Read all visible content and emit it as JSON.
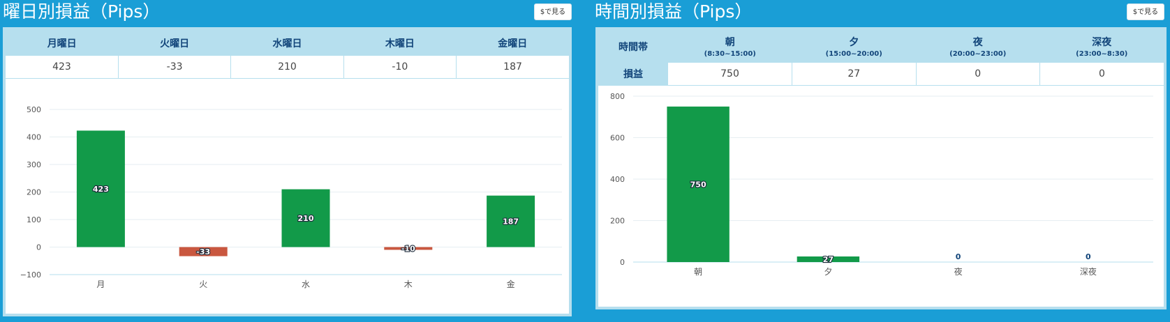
{
  "weekday_panel": {
    "title": "曜日別損益（Pips）",
    "dollar_button": "$で見る",
    "headers": [
      "月曜日",
      "火曜日",
      "水曜日",
      "木曜日",
      "金曜日"
    ],
    "values": [
      "423",
      "-33",
      "210",
      "-10",
      "187"
    ]
  },
  "time_panel": {
    "title": "時間別損益（Pips）",
    "dollar_button": "$で見る",
    "row_header_1": "時間帯",
    "row_header_2": "損益",
    "headers": [
      {
        "label": "朝",
        "range": "(8:30~15:00)"
      },
      {
        "label": "夕",
        "range": "(15:00~20:00)"
      },
      {
        "label": "夜",
        "range": "(20:00~23:00)"
      },
      {
        "label": "深夜",
        "range": "(23:00~8:30)"
      }
    ],
    "values": [
      "750",
      "27",
      "0",
      "0"
    ]
  },
  "colors": {
    "background": "#1a9ed6",
    "header_bg": "#b6dfee",
    "header_text": "#12457a",
    "positive_bar": "#129a49",
    "negative_bar": "#c9573f",
    "zero_label": "#12457a"
  },
  "chart_data": [
    {
      "type": "bar",
      "categories": [
        "月",
        "火",
        "水",
        "木",
        "金"
      ],
      "values": [
        423,
        -33,
        210,
        -10,
        187
      ],
      "data_labels": [
        "423",
        "-33",
        "210",
        "-10",
        "187"
      ],
      "ylim": [
        -100,
        500
      ],
      "yticks": [
        500,
        400,
        300,
        200,
        100,
        0,
        -100
      ],
      "ytick_labels": [
        "500",
        "400",
        "300",
        "200",
        "100",
        "0",
        "−100"
      ],
      "grid": true
    },
    {
      "type": "bar",
      "categories": [
        "朝",
        "夕",
        "夜",
        "深夜"
      ],
      "values": [
        750,
        27,
        0,
        0
      ],
      "data_labels": [
        "750",
        "27",
        "0",
        "0"
      ],
      "ylim": [
        0,
        800
      ],
      "yticks": [
        800,
        600,
        400,
        200,
        0
      ],
      "ytick_labels": [
        "800",
        "600",
        "400",
        "200",
        "0"
      ],
      "grid": true
    }
  ]
}
